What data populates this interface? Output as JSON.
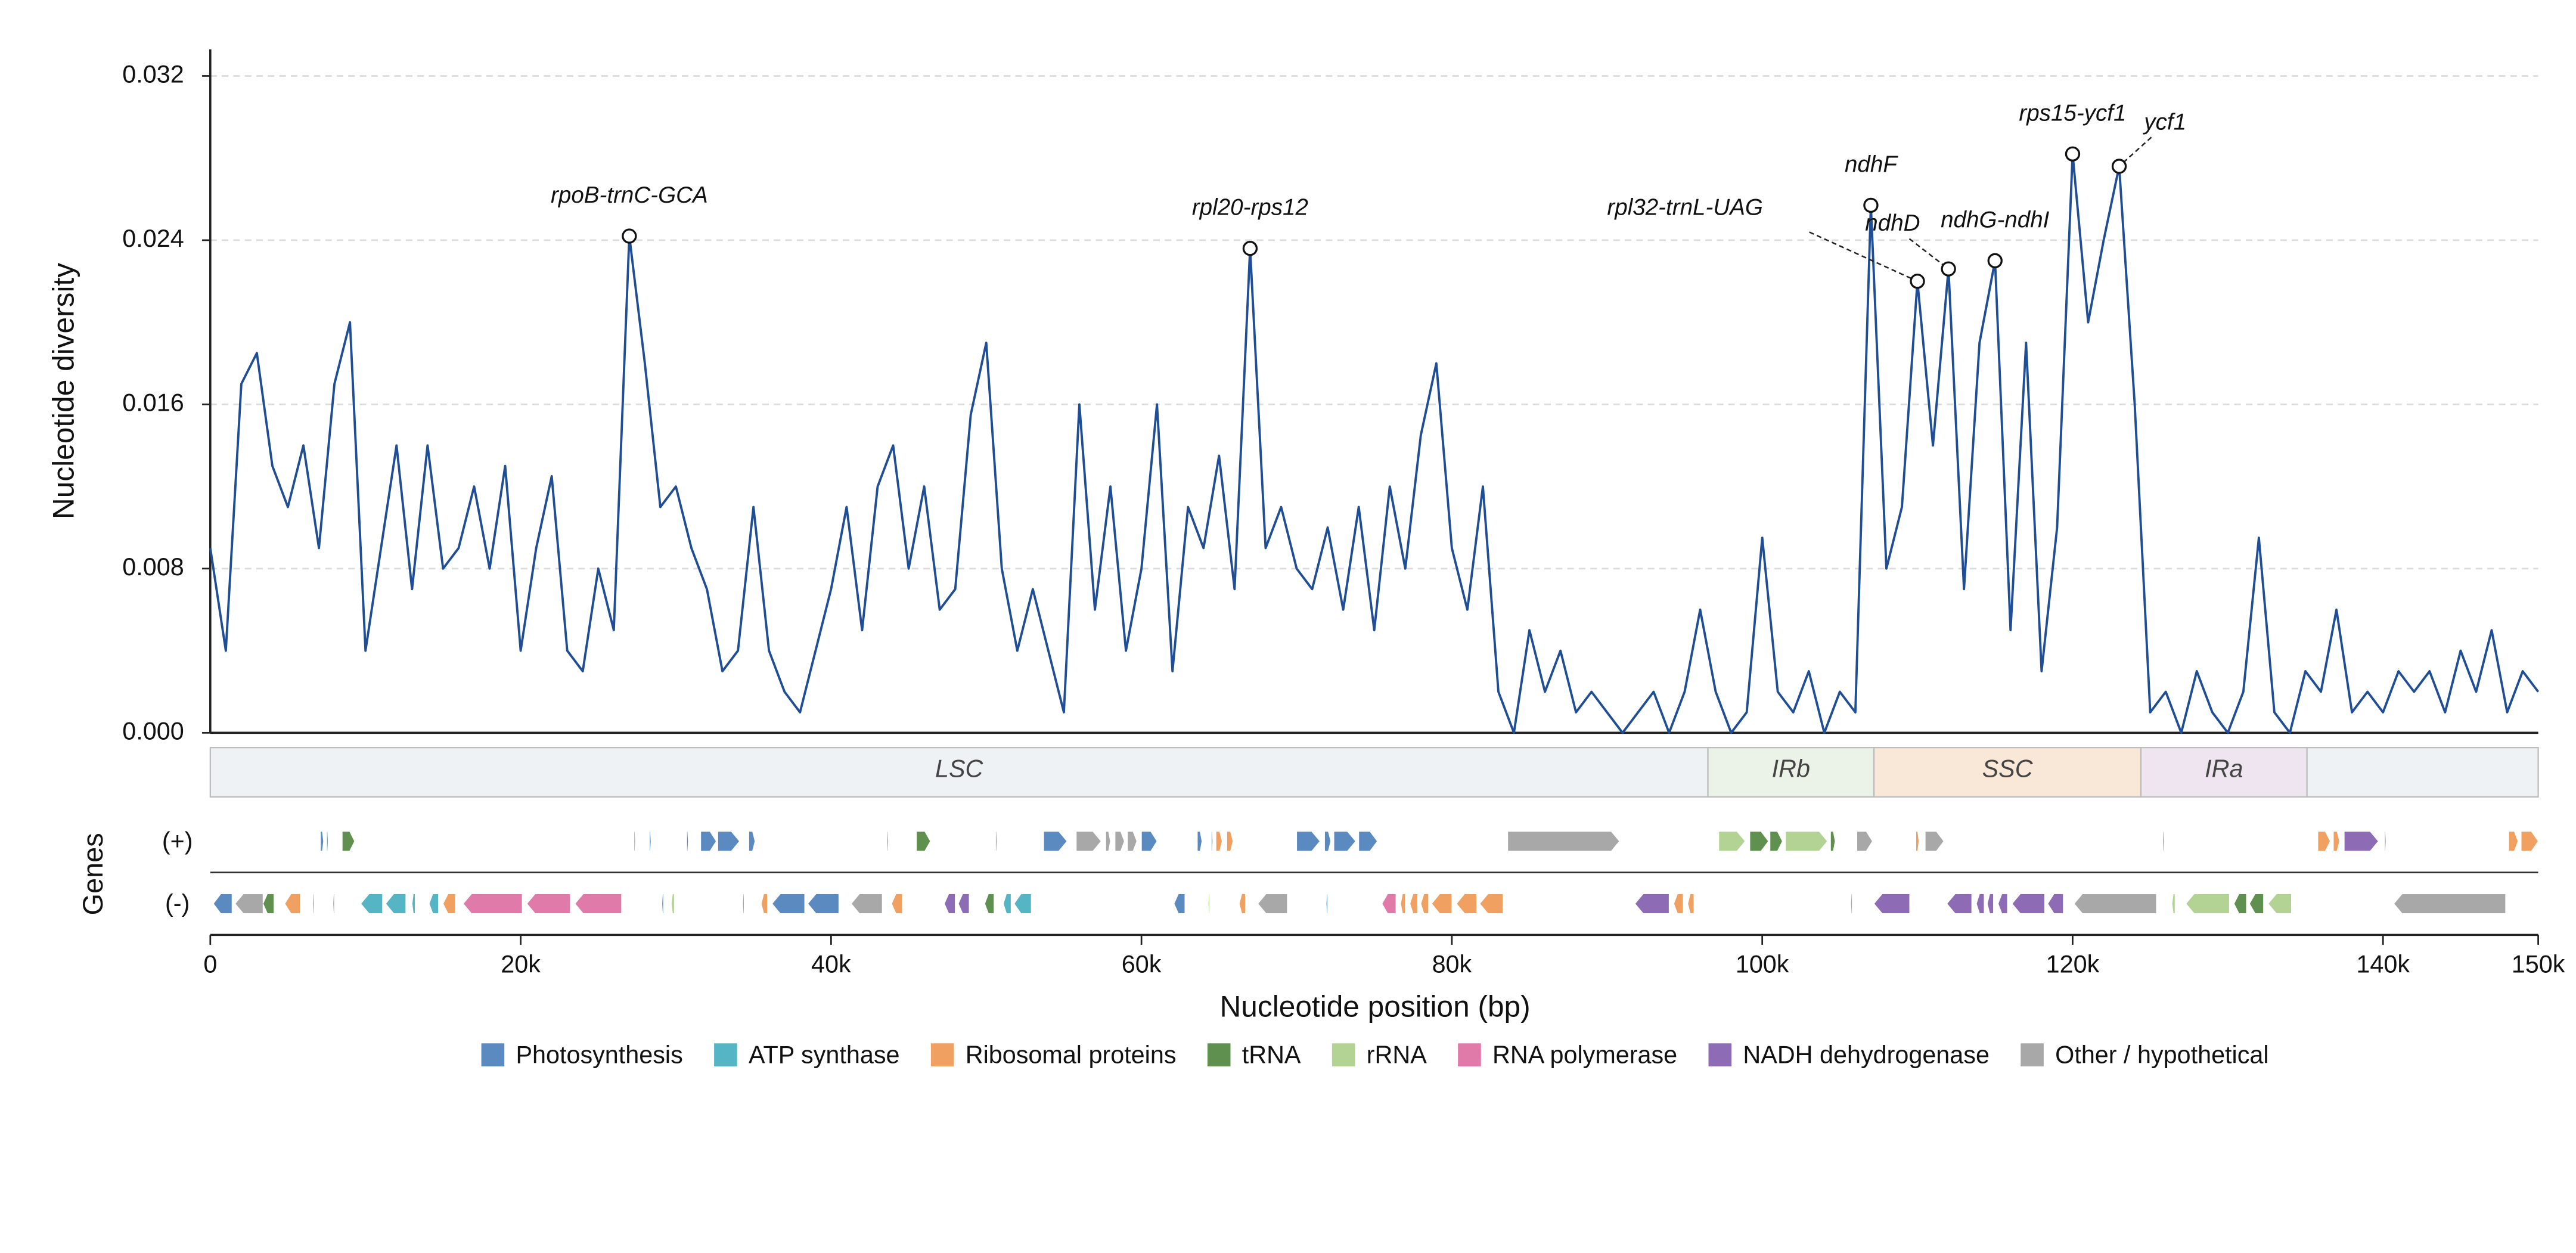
{
  "chart_data": {
    "type": "line",
    "ylabel": "Nucleotide diversity",
    "xlabel": "Nucleotide position (bp)",
    "xlim": [
      0,
      150000
    ],
    "ylim": [
      0,
      0.0333
    ],
    "xticks": [
      {
        "value": 0,
        "label": "0"
      },
      {
        "value": 20000,
        "label": "20k"
      },
      {
        "value": 40000,
        "label": "40k"
      },
      {
        "value": 60000,
        "label": "60k"
      },
      {
        "value": 80000,
        "label": "80k"
      },
      {
        "value": 100000,
        "label": "100k"
      },
      {
        "value": 120000,
        "label": "120k"
      },
      {
        "value": 140000,
        "label": "140k"
      },
      {
        "value": 150000,
        "label": "150k"
      }
    ],
    "yticks": [
      {
        "value": 0,
        "label": "0.000"
      },
      {
        "value": 0.008,
        "label": "0.008"
      },
      {
        "value": 0.016,
        "label": "0.016"
      },
      {
        "value": 0.024,
        "label": "0.024"
      },
      {
        "value": 0.032,
        "label": "0.032"
      }
    ],
    "grid": true,
    "color": "#1f4e96",
    "x": [
      0,
      1000,
      2000,
      3000,
      4000,
      5000,
      6000,
      7000,
      8000,
      9000,
      10000,
      11000,
      12000,
      13000,
      14000,
      15000,
      16000,
      17000,
      18000,
      19000,
      20000,
      21000,
      22000,
      23000,
      24000,
      25000,
      26000,
      27000,
      28000,
      29000,
      30000,
      31000,
      32000,
      33000,
      34000,
      35000,
      36000,
      37000,
      38000,
      39000,
      40000,
      41000,
      42000,
      43000,
      44000,
      45000,
      46000,
      47000,
      48000,
      49000,
      50000,
      51000,
      52000,
      53000,
      54000,
      55000,
      56000,
      57000,
      58000,
      59000,
      60000,
      61000,
      62000,
      63000,
      64000,
      65000,
      66000,
      67000,
      68000,
      69000,
      70000,
      71000,
      72000,
      73000,
      74000,
      75000,
      76000,
      77000,
      78000,
      79000,
      80000,
      81000,
      82000,
      83000,
      84000,
      85000,
      86000,
      87000,
      88000,
      89000,
      90000,
      91000,
      92000,
      93000,
      94000,
      95000,
      96000,
      97000,
      98000,
      99000,
      100000,
      101000,
      102000,
      103000,
      104000,
      105000,
      106000,
      107000,
      108000,
      109000,
      110000,
      111000,
      112000,
      113000,
      114000,
      115000,
      116000,
      117000,
      118000,
      119000,
      120000,
      121000,
      122000,
      123000,
      124000,
      125000,
      126000,
      127000,
      128000,
      129000,
      130000,
      131000,
      132000,
      133000,
      134000,
      135000,
      136000,
      137000,
      138000,
      139000,
      140000,
      141000,
      142000,
      143000,
      144000,
      145000,
      146000,
      147000,
      148000,
      149000,
      150000
    ],
    "values": [
      0.009,
      0.004,
      0.017,
      0.0185,
      0.013,
      0.011,
      0.014,
      0.009,
      0.017,
      0.02,
      0.004,
      0.009,
      0.014,
      0.007,
      0.014,
      0.008,
      0.009,
      0.012,
      0.008,
      0.013,
      0.004,
      0.009,
      0.0125,
      0.004,
      0.003,
      0.008,
      0.005,
      0.0242,
      0.018,
      0.011,
      0.012,
      0.009,
      0.007,
      0.003,
      0.004,
      0.011,
      0.004,
      0.002,
      0.001,
      0.004,
      0.007,
      0.011,
      0.005,
      0.012,
      0.014,
      0.008,
      0.012,
      0.006,
      0.007,
      0.0155,
      0.019,
      0.008,
      0.004,
      0.007,
      0.004,
      0.001,
      0.016,
      0.006,
      0.012,
      0.004,
      0.008,
      0.016,
      0.003,
      0.011,
      0.009,
      0.0135,
      0.007,
      0.0236,
      0.009,
      0.011,
      0.008,
      0.007,
      0.01,
      0.006,
      0.011,
      0.005,
      0.012,
      0.008,
      0.0145,
      0.018,
      0.009,
      0.006,
      0.012,
      0.002,
      0,
      0.005,
      0.002,
      0.004,
      0.001,
      0.002,
      0.001,
      0,
      0.001,
      0.002,
      0,
      0.002,
      0.006,
      0.002,
      0,
      0.001,
      0.0095,
      0.002,
      0.001,
      0.003,
      0,
      0.002,
      0.001,
      0.0257,
      0.008,
      0.011,
      0.022,
      0.014,
      0.0226,
      0.007,
      0.019,
      0.023,
      0.005,
      0.019,
      0.003,
      0.01,
      0.0282,
      0.02,
      0.024,
      0.0276,
      0.016,
      0.001,
      0.002,
      0,
      0.003,
      0.001,
      0,
      0.002,
      0.0095,
      0.001,
      0,
      0.003,
      0.002,
      0.006,
      0.001,
      0.002,
      0.001,
      0.003,
      0.002,
      0.003,
      0.001,
      0.004,
      0.002,
      0.005,
      0.001,
      0.003,
      0.002
    ],
    "annotations": [
      {
        "label": "rpoB-trnC-GCA",
        "x": 27000,
        "y": 0.0242
      },
      {
        "label": "rpl20-rps12",
        "x": 67000,
        "y": 0.0236
      },
      {
        "label": "ndhF",
        "x": 107000,
        "y": 0.0257
      },
      {
        "label": "rpl32-trnL-UAG",
        "x": 110000,
        "y": 0.022
      },
      {
        "label": "ndhD",
        "x": 112000,
        "y": 0.0226
      },
      {
        "label": "ndhG-ndhI",
        "x": 115000,
        "y": 0.023
      },
      {
        "label": "rps15-ycf1",
        "x": 120000,
        "y": 0.0282
      },
      {
        "label": "ycf1",
        "x": 123000,
        "y": 0.0276
      }
    ],
    "regions": [
      {
        "label": "LSC",
        "start": 0,
        "end": 96500,
        "color": "#eef2f5"
      },
      {
        "label": "IRb",
        "start": 96500,
        "end": 107200,
        "color": "#ebf2e8"
      },
      {
        "label": "SSC",
        "start": 107200,
        "end": 124400,
        "color": "#f9e7d8"
      },
      {
        "label": "IRa",
        "start": 124400,
        "end": 135100,
        "color": "#efe5f0"
      },
      {
        "label": null,
        "start": 135100,
        "end": 150000,
        "color": "#eef2f5"
      }
    ],
    "genes_label": "Genes",
    "strand_labels": [
      "(+)",
      "(-)"
    ],
    "categories": [
      {
        "name": "Photosynthesis",
        "color": "#5b8ac0"
      },
      {
        "name": "ATP synthase",
        "color": "#55b5c5"
      },
      {
        "name": "Ribosomal proteins",
        "color": "#f0a060"
      },
      {
        "name": "tRNA",
        "color": "#5f9050"
      },
      {
        "name": "rRNA",
        "color": "#b3d394"
      },
      {
        "name": "RNA polymerase",
        "color": "#e07aa8"
      },
      {
        "name": "NADH dehydrogenase",
        "color": "#8e6bb5"
      },
      {
        "name": "Other / hypothetical",
        "color": "#a8a8a8"
      }
    ],
    "genes_plus": [
      [
        7100,
        7300,
        0
      ],
      [
        7500,
        7600,
        1
      ],
      [
        8500,
        9300,
        3
      ],
      [
        27300,
        27400,
        7
      ],
      [
        28300,
        28400,
        0
      ],
      [
        30700,
        30800,
        0
      ],
      [
        31600,
        32600,
        0
      ],
      [
        32700,
        34100,
        0
      ],
      [
        34700,
        35100,
        0
      ],
      [
        43600,
        43700,
        7
      ],
      [
        45500,
        46400,
        3
      ],
      [
        50600,
        50700,
        7
      ],
      [
        53700,
        55200,
        0
      ],
      [
        55800,
        57400,
        7
      ],
      [
        57700,
        58000,
        7
      ],
      [
        58300,
        58900,
        7
      ],
      [
        59100,
        59700,
        7
      ],
      [
        60000,
        61000,
        0
      ],
      [
        63600,
        63900,
        0
      ],
      [
        64500,
        64600,
        1
      ],
      [
        64800,
        65200,
        2
      ],
      [
        65500,
        65900,
        2
      ],
      [
        70000,
        71500,
        0
      ],
      [
        71800,
        72200,
        0
      ],
      [
        72400,
        73800,
        0
      ],
      [
        74000,
        75200,
        0
      ],
      [
        83600,
        90800,
        7
      ],
      [
        97200,
        98900,
        4
      ],
      [
        99200,
        100400,
        3
      ],
      [
        100500,
        101300,
        3
      ],
      [
        101500,
        104200,
        4
      ],
      [
        104400,
        104700,
        3
      ],
      [
        106100,
        107100,
        7
      ],
      [
        109900,
        110100,
        2
      ],
      [
        110500,
        111700,
        7
      ],
      [
        125800,
        125900,
        7
      ],
      [
        135800,
        136600,
        2
      ],
      [
        136800,
        137200,
        2
      ],
      [
        137500,
        139700,
        6
      ],
      [
        140100,
        140200,
        7
      ],
      [
        148100,
        148700,
        2
      ],
      [
        148900,
        150000,
        2
      ]
    ],
    "genes_minus": [
      [
        200,
        1400,
        0
      ],
      [
        1600,
        3400,
        7
      ],
      [
        3400,
        4100,
        3
      ],
      [
        4800,
        5800,
        2
      ],
      [
        6600,
        6700,
        7
      ],
      [
        7900,
        8000,
        7
      ],
      [
        9700,
        11100,
        1
      ],
      [
        11300,
        12600,
        1
      ],
      [
        13000,
        13200,
        1
      ],
      [
        14100,
        14700,
        1
      ],
      [
        15000,
        15800,
        2
      ],
      [
        16300,
        20100,
        5
      ],
      [
        20400,
        23200,
        5
      ],
      [
        23500,
        26500,
        5
      ],
      [
        29100,
        29200,
        0
      ],
      [
        29700,
        29900,
        4
      ],
      [
        34300,
        34400,
        7
      ],
      [
        35500,
        35900,
        2
      ],
      [
        36200,
        38300,
        0
      ],
      [
        38500,
        40500,
        0
      ],
      [
        41300,
        43300,
        7
      ],
      [
        43900,
        44600,
        2
      ],
      [
        47300,
        48000,
        6
      ],
      [
        48200,
        48900,
        6
      ],
      [
        49900,
        50500,
        3
      ],
      [
        51100,
        51600,
        1
      ],
      [
        51800,
        52900,
        1
      ],
      [
        62100,
        62800,
        0
      ],
      [
        64300,
        64400,
        4
      ],
      [
        66300,
        66700,
        2
      ],
      [
        67500,
        69400,
        7
      ],
      [
        71900,
        72000,
        0
      ],
      [
        75500,
        76400,
        5
      ],
      [
        76700,
        77000,
        2
      ],
      [
        77300,
        77800,
        2
      ],
      [
        78000,
        78500,
        2
      ],
      [
        78700,
        80000,
        2
      ],
      [
        80300,
        81600,
        2
      ],
      [
        81800,
        83300,
        2
      ],
      [
        91800,
        94000,
        6
      ],
      [
        94300,
        94900,
        2
      ],
      [
        95200,
        95600,
        2
      ],
      [
        105700,
        105800,
        7
      ],
      [
        107200,
        109500,
        6
      ],
      [
        111900,
        113500,
        6
      ],
      [
        113800,
        114300,
        6
      ],
      [
        114500,
        114900,
        6
      ],
      [
        115200,
        115800,
        6
      ],
      [
        116100,
        118200,
        6
      ],
      [
        118400,
        119400,
        6
      ],
      [
        120100,
        125400,
        7
      ],
      [
        126400,
        126600,
        4
      ],
      [
        127300,
        130100,
        4
      ],
      [
        130400,
        131200,
        3
      ],
      [
        131400,
        132300,
        3
      ],
      [
        132600,
        134100,
        4
      ],
      [
        140700,
        147900,
        7
      ]
    ]
  }
}
